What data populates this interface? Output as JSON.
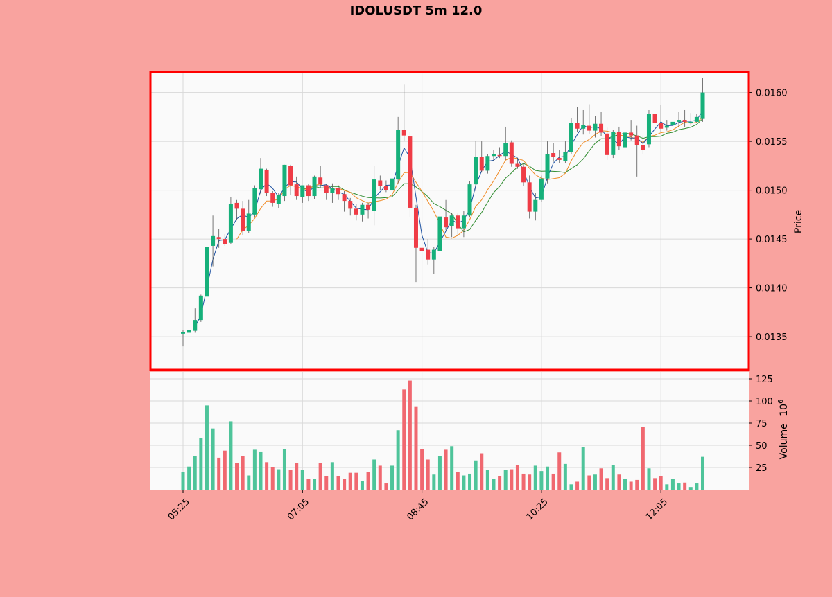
{
  "title": "IDOLUSDT 5m 12.0",
  "colors": {
    "background": "#f9a39f",
    "panel": "#fafafa",
    "frame": "#ff0000",
    "up": "#16b07a",
    "down": "#ef3c46",
    "vol_up": "#4ec49a",
    "vol_down": "#f06870",
    "ma_fast": "#1a4fa0",
    "ma_mid": "#f08a24",
    "ma_slow": "#2e8b2e"
  },
  "chart_data": {
    "type": "candlestick",
    "title": "IDOLUSDT 5m 12.0",
    "ylabel_price": "Price",
    "ylabel_volume": "Volume",
    "volume_unit": "10^6",
    "price_ticks": [
      0.0135,
      0.014,
      0.0145,
      0.015,
      0.0155,
      0.016
    ],
    "price_tick_labels": [
      "0.0135",
      "0.0140",
      "0.0145",
      "0.0150",
      "0.0155",
      "0.0160"
    ],
    "price_range": [
      0.01316,
      0.01621
    ],
    "volume_ticks": [
      25,
      50,
      75,
      100,
      125
    ],
    "volume_range": [
      0,
      125
    ],
    "x_tick_indices": [
      0,
      20,
      40,
      60,
      80
    ],
    "x_tick_labels": [
      "05:25",
      "07:05",
      "08:45",
      "10:25",
      "12:05"
    ],
    "grid": true,
    "ohlc": [
      [
        0.01353,
        0.01357,
        0.0134,
        0.01355
      ],
      [
        0.01354,
        0.01358,
        0.01337,
        0.01357
      ],
      [
        0.01356,
        0.01379,
        0.01354,
        0.01367
      ],
      [
        0.01367,
        0.01393,
        0.01365,
        0.01392
      ],
      [
        0.01391,
        0.01482,
        0.01384,
        0.01442
      ],
      [
        0.01443,
        0.01474,
        0.01422,
        0.01453
      ],
      [
        0.01452,
        0.0146,
        0.01441,
        0.0145
      ],
      [
        0.0145,
        0.01455,
        0.01443,
        0.01445
      ],
      [
        0.01446,
        0.01493,
        0.01445,
        0.01486
      ],
      [
        0.01487,
        0.0149,
        0.01469,
        0.01481
      ],
      [
        0.01481,
        0.01489,
        0.01454,
        0.01458
      ],
      [
        0.01458,
        0.0149,
        0.01456,
        0.01476
      ],
      [
        0.01475,
        0.01505,
        0.01472,
        0.01502
      ],
      [
        0.01501,
        0.01533,
        0.01496,
        0.01522
      ],
      [
        0.01521,
        0.01522,
        0.01494,
        0.01497
      ],
      [
        0.01497,
        0.01499,
        0.01483,
        0.01487
      ],
      [
        0.01486,
        0.01497,
        0.01482,
        0.01495
      ],
      [
        0.01494,
        0.01526,
        0.01489,
        0.01526
      ],
      [
        0.01525,
        0.01526,
        0.01495,
        0.01505
      ],
      [
        0.01506,
        0.01514,
        0.0149,
        0.01494
      ],
      [
        0.01493,
        0.01505,
        0.01487,
        0.01505
      ],
      [
        0.01505,
        0.01506,
        0.01489,
        0.01494
      ],
      [
        0.01494,
        0.01515,
        0.01491,
        0.01514
      ],
      [
        0.01513,
        0.01525,
        0.01502,
        0.01506
      ],
      [
        0.01505,
        0.01506,
        0.0149,
        0.01497
      ],
      [
        0.01497,
        0.01507,
        0.01487,
        0.01502
      ],
      [
        0.01502,
        0.01505,
        0.0149,
        0.01496
      ],
      [
        0.01496,
        0.01499,
        0.01478,
        0.01489
      ],
      [
        0.01489,
        0.01492,
        0.01474,
        0.01481
      ],
      [
        0.01481,
        0.01486,
        0.01469,
        0.01475
      ],
      [
        0.01475,
        0.01487,
        0.01468,
        0.01485
      ],
      [
        0.01485,
        0.01487,
        0.01471,
        0.0148
      ],
      [
        0.01479,
        0.01525,
        0.01464,
        0.01511
      ],
      [
        0.0151,
        0.01515,
        0.015,
        0.01504
      ],
      [
        0.01504,
        0.0151,
        0.01498,
        0.015
      ],
      [
        0.015,
        0.01515,
        0.01498,
        0.01512
      ],
      [
        0.01511,
        0.01575,
        0.01507,
        0.01562
      ],
      [
        0.01562,
        0.01608,
        0.0155,
        0.01556
      ],
      [
        0.01555,
        0.0156,
        0.01472,
        0.01482
      ],
      [
        0.01482,
        0.01485,
        0.01406,
        0.01441
      ],
      [
        0.01441,
        0.01443,
        0.01425,
        0.01438
      ],
      [
        0.01439,
        0.0145,
        0.01424,
        0.01429
      ],
      [
        0.01429,
        0.01442,
        0.01414,
        0.01439
      ],
      [
        0.01438,
        0.0148,
        0.01434,
        0.01473
      ],
      [
        0.01472,
        0.0149,
        0.01459,
        0.01462
      ],
      [
        0.01463,
        0.01477,
        0.01452,
        0.01474
      ],
      [
        0.01474,
        0.01476,
        0.01453,
        0.01461
      ],
      [
        0.01461,
        0.01479,
        0.01452,
        0.01474
      ],
      [
        0.01474,
        0.01509,
        0.01472,
        0.01506
      ],
      [
        0.01506,
        0.0155,
        0.01499,
        0.01534
      ],
      [
        0.01534,
        0.0155,
        0.01518,
        0.0152
      ],
      [
        0.0152,
        0.01537,
        0.01517,
        0.01535
      ],
      [
        0.01535,
        0.01541,
        0.0153,
        0.01537
      ],
      [
        0.01536,
        0.01544,
        0.01533,
        0.01535
      ],
      [
        0.01535,
        0.01565,
        0.01531,
        0.01548
      ],
      [
        0.01549,
        0.01551,
        0.01524,
        0.01527
      ],
      [
        0.01527,
        0.01533,
        0.01522,
        0.01524
      ],
      [
        0.01524,
        0.01528,
        0.01504,
        0.01508
      ],
      [
        0.01508,
        0.01515,
        0.01471,
        0.01478
      ],
      [
        0.01478,
        0.01497,
        0.01469,
        0.0149
      ],
      [
        0.0149,
        0.01515,
        0.01488,
        0.01512
      ],
      [
        0.01512,
        0.0155,
        0.01507,
        0.01537
      ],
      [
        0.01538,
        0.01548,
        0.01529,
        0.01534
      ],
      [
        0.01533,
        0.01541,
        0.01528,
        0.01531
      ],
      [
        0.0153,
        0.0155,
        0.01528,
        0.01539
      ],
      [
        0.01539,
        0.01574,
        0.01537,
        0.01569
      ],
      [
        0.01569,
        0.01585,
        0.0156,
        0.01563
      ],
      [
        0.01563,
        0.01582,
        0.01557,
        0.01567
      ],
      [
        0.01566,
        0.01588,
        0.01558,
        0.01561
      ],
      [
        0.01561,
        0.01576,
        0.01554,
        0.01568
      ],
      [
        0.01568,
        0.0158,
        0.01555,
        0.01559
      ],
      [
        0.01558,
        0.01564,
        0.01531,
        0.01536
      ],
      [
        0.01536,
        0.01562,
        0.01533,
        0.0156
      ],
      [
        0.0156,
        0.01565,
        0.01541,
        0.01545
      ],
      [
        0.01544,
        0.0157,
        0.01541,
        0.01559
      ],
      [
        0.01559,
        0.01572,
        0.01551,
        0.01556
      ],
      [
        0.01556,
        0.01566,
        0.01514,
        0.01546
      ],
      [
        0.01546,
        0.01556,
        0.01537,
        0.01541
      ],
      [
        0.01547,
        0.01582,
        0.01544,
        0.01578
      ],
      [
        0.01578,
        0.01582,
        0.01567,
        0.01569
      ],
      [
        0.01569,
        0.01587,
        0.0156,
        0.01563
      ],
      [
        0.01564,
        0.01572,
        0.01561,
        0.01566
      ],
      [
        0.01567,
        0.01588,
        0.01565,
        0.0157
      ],
      [
        0.0157,
        0.0158,
        0.01565,
        0.01572
      ],
      [
        0.01572,
        0.01582,
        0.01565,
        0.0157
      ],
      [
        0.0157,
        0.01579,
        0.01566,
        0.0157
      ],
      [
        0.0157,
        0.01578,
        0.01569,
        0.01575
      ],
      [
        0.01573,
        0.01615,
        0.0157,
        0.016
      ]
    ],
    "volume": [
      20,
      26,
      38,
      58,
      95,
      69,
      36,
      44,
      77,
      30,
      38,
      16,
      45,
      43,
      31,
      25,
      23,
      46,
      22,
      30,
      22,
      12,
      12,
      30,
      15,
      31,
      15,
      12,
      19,
      19,
      10,
      20,
      34,
      27,
      7,
      27,
      67,
      113,
      123,
      94,
      46,
      34,
      17,
      38,
      45,
      49,
      20,
      16,
      18,
      33,
      41,
      22,
      12,
      15,
      22,
      23,
      28,
      18,
      17,
      27,
      21,
      26,
      18,
      42,
      29,
      6,
      9,
      48,
      16,
      17,
      24,
      13,
      28,
      17,
      12,
      9,
      11,
      71,
      24,
      13,
      15,
      6,
      12,
      7,
      8,
      3,
      7,
      37
    ],
    "ma_fast_start": 8,
    "ma_slow_start": 20,
    "ma_mid_start": 9
  }
}
